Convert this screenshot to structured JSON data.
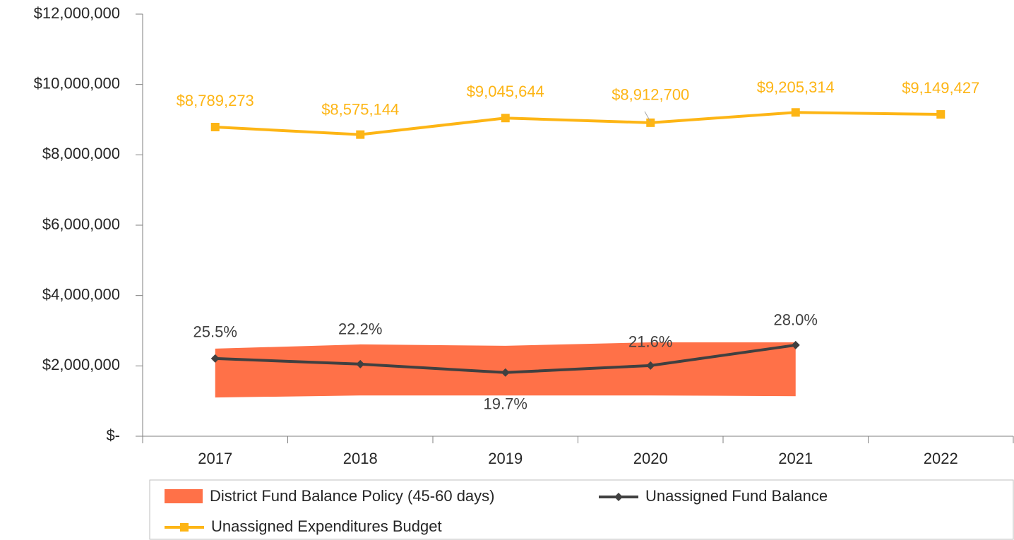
{
  "chart_data": {
    "type": "band-line",
    "categories": [
      "2017",
      "2018",
      "2019",
      "2020",
      "2021",
      "2022"
    ],
    "ylim": [
      0,
      12000000
    ],
    "yticks": [
      {
        "value": 0,
        "label": "$-"
      },
      {
        "value": 2000000,
        "label": "$2,000,000"
      },
      {
        "value": 4000000,
        "label": "$4,000,000"
      },
      {
        "value": 6000000,
        "label": "$6,000,000"
      },
      {
        "value": 8000000,
        "label": "$8,000,000"
      },
      {
        "value": 10000000,
        "label": "$10,000,000"
      },
      {
        "value": 12000000,
        "label": "$12,000,000"
      }
    ],
    "band": {
      "name": "District Fund Balance Policy (45-60 days)",
      "color": "#ff7148",
      "low": [
        1100000,
        1160000,
        1160000,
        1160000,
        1140000,
        null
      ],
      "high": [
        2490000,
        2610000,
        2570000,
        2670000,
        2670000,
        null
      ]
    },
    "series": [
      {
        "name": "Unassigned Fund Balance",
        "color": "#404040",
        "marker": "diamond",
        "values": [
          2210000,
          2050000,
          1810000,
          2010000,
          2590000,
          null
        ],
        "data_labels": [
          "25.5%",
          "22.2%",
          "19.7%",
          "21.6%",
          "28.0%",
          null
        ]
      },
      {
        "name": "Unassigned Expenditures Budget",
        "color": "#fdb515",
        "marker": "square",
        "values": [
          8789273,
          8575144,
          9045644,
          8912700,
          9205314,
          9149427
        ],
        "value_labels": [
          "$8,789,273",
          "$8,575,144",
          "$9,045,644",
          "$8,912,700",
          "$9,205,314",
          "$9,149,427"
        ]
      }
    ]
  }
}
